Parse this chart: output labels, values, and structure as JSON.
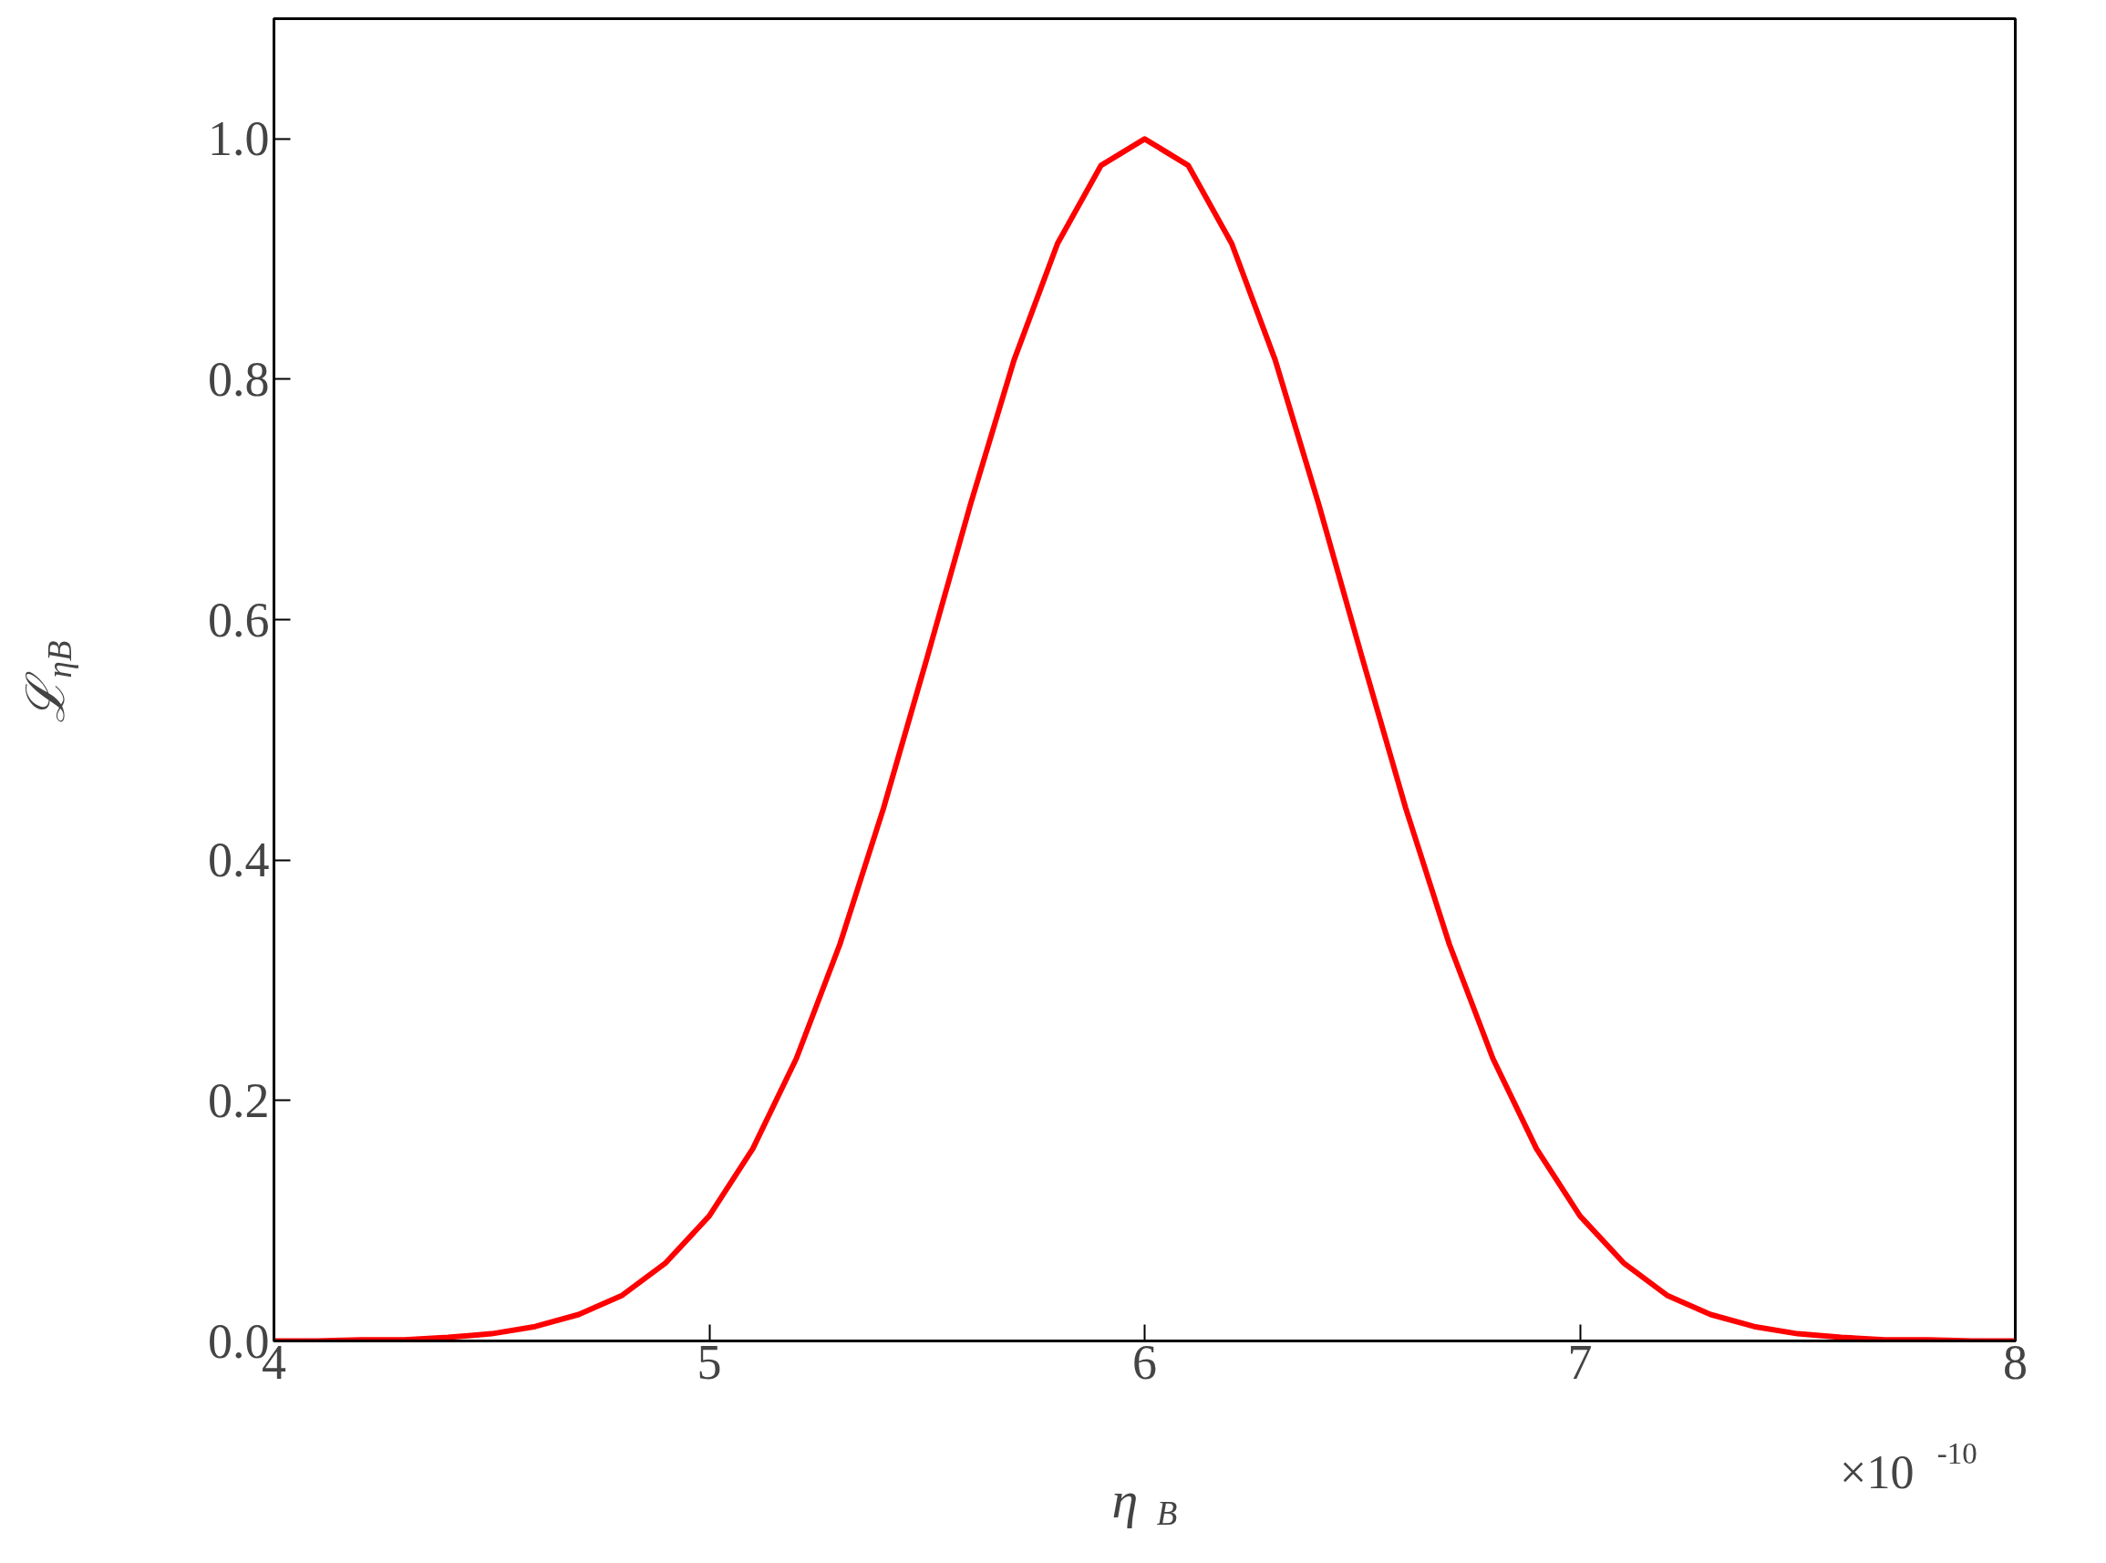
{
  "chart_data": {
    "type": "line",
    "xlabel": "η$_{B}$",
    "ylabel": "ℒ$_{ηB}$",
    "x": [
      4.0,
      4.1,
      4.2,
      4.3,
      4.4,
      4.5,
      4.6,
      4.7,
      4.8,
      4.9,
      5.0,
      5.1,
      5.2,
      5.3,
      5.4,
      5.5,
      5.6,
      5.7,
      5.8,
      5.9,
      6.0,
      6.1,
      6.2,
      6.3,
      6.4,
      6.5,
      6.6,
      6.7,
      6.8,
      6.9,
      7.0,
      7.1,
      7.2,
      7.3,
      7.4,
      7.5,
      7.6,
      7.7,
      7.8,
      7.9,
      8.0
    ],
    "series": [
      {
        "color": "#ff0000",
        "values": [
          0.0,
          0.0,
          0.001,
          0.001,
          0.003,
          0.006,
          0.012,
          0.022,
          0.038,
          0.065,
          0.104,
          0.16,
          0.235,
          0.33,
          0.443,
          0.568,
          0.696,
          0.816,
          0.913,
          0.978,
          1.0,
          0.978,
          0.913,
          0.816,
          0.696,
          0.568,
          0.443,
          0.33,
          0.235,
          0.16,
          0.104,
          0.065,
          0.038,
          0.022,
          0.012,
          0.006,
          0.003,
          0.001,
          0.001,
          0.0,
          0.0
        ]
      }
    ],
    "xlim": [
      4,
      8
    ],
    "ylim": [
      0,
      1.1
    ],
    "xticks": [
      4,
      5,
      6,
      7,
      8
    ],
    "yticks": [
      {
        "value": 0,
        "label": "0.0"
      },
      {
        "value": 0.2,
        "label": "0.2"
      },
      {
        "value": 0.4,
        "label": "0.4"
      },
      {
        "value": 0.6,
        "label": "0.6"
      },
      {
        "value": 0.8,
        "label": "0.8"
      },
      {
        "value": 1.0,
        "label": "1.0"
      }
    ],
    "annotations": [
      "×10$^{-10}$"
    ],
    "grid": false,
    "line_style": "solid"
  }
}
